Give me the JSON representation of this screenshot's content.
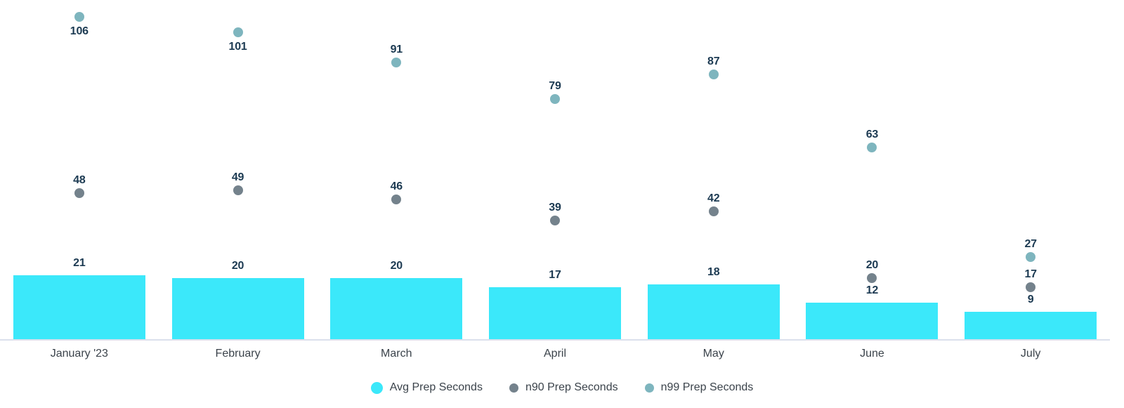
{
  "chart_data": {
    "type": "bar",
    "subtype": "combo-bar-scatter",
    "title": "",
    "xlabel": "",
    "ylabel": "",
    "categories": [
      "January '23",
      "February",
      "March",
      "April",
      "May",
      "June",
      "July"
    ],
    "series": [
      {
        "name": "Avg Prep Seconds",
        "mark": "bar",
        "color": "#3BE8FA",
        "values": [
          21,
          20,
          20,
          17,
          18,
          12,
          9
        ]
      },
      {
        "name": "n90 Prep Seconds",
        "mark": "point",
        "color": "#74828C",
        "values": [
          48,
          49,
          46,
          39,
          42,
          20,
          17
        ]
      },
      {
        "name": "n99 Prep Seconds",
        "mark": "point",
        "color": "#7EB5BE",
        "values": [
          106,
          101,
          91,
          79,
          87,
          63,
          27
        ]
      }
    ],
    "value_labels": true,
    "ylim": [
      0,
      110
    ],
    "grid": false,
    "y_axis_shown": false,
    "legend_position": "bottom"
  },
  "colors": {
    "value_label": "#1C3A52",
    "axis_label": "#3B434B",
    "legend_label": "#3B434B",
    "axis_line": "#DBE0EC",
    "background": "#FFFFFF"
  }
}
